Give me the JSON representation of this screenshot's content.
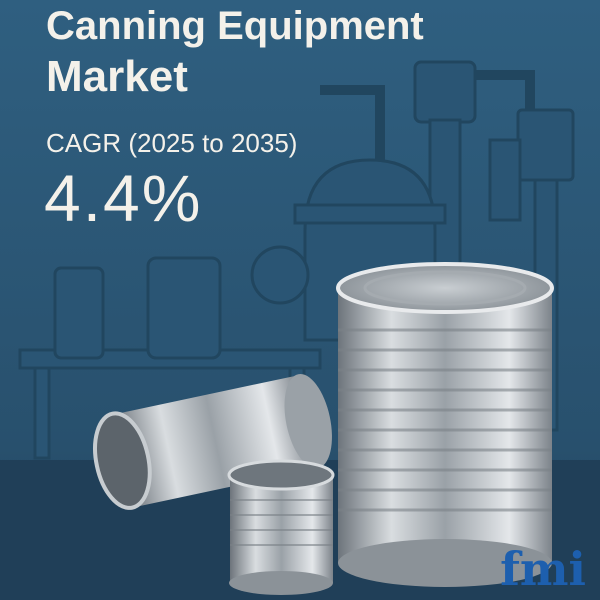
{
  "header": {
    "title_line1": "Canning Equipment",
    "title_line2": "Market"
  },
  "metric": {
    "label": "CAGR (2025 to 2035)",
    "value": "4.4%"
  },
  "logo": {
    "text": "fmi"
  }
}
